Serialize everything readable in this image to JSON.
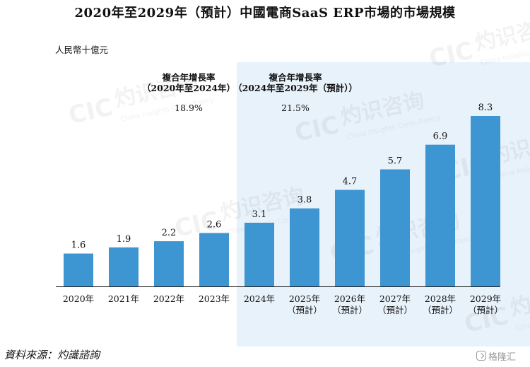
{
  "page": {
    "title": "2020年至2029年（預計）中國電商SaaS ERP市場的市場規模",
    "unit": "人民幣十億元",
    "source": "資料來源：灼識諮詢",
    "logo_text": "格隆汇",
    "watermark_cn": "灼识咨询",
    "watermark_en": "China Insights Consultancy",
    "watermark_abbr": "CIC"
  },
  "chart_data": {
    "type": "bar",
    "title": "2020年至2029年（預計）中國電商SaaS ERP市場的市場規模",
    "ylabel": "人民幣十億元",
    "xlabel": "",
    "ylim": [
      0,
      8.3
    ],
    "categories": [
      [
        "2020年"
      ],
      [
        "2021年"
      ],
      [
        "2022年"
      ],
      [
        "2023年"
      ],
      [
        "2024年"
      ],
      [
        "2025年",
        "（預計）"
      ],
      [
        "2026年",
        "（預計）"
      ],
      [
        "2027年",
        "（預計）"
      ],
      [
        "2028年",
        "（預計）"
      ],
      [
        "2029年",
        "（預計）"
      ]
    ],
    "values": [
      1.6,
      1.9,
      2.2,
      2.6,
      3.1,
      3.8,
      4.7,
      5.7,
      6.9,
      8.3
    ],
    "value_labels": [
      "1.6",
      "1.9",
      "2.2",
      "2.6",
      "3.1",
      "3.8",
      "4.7",
      "5.7",
      "6.9",
      "8.3"
    ],
    "bar_color": "#3d95d1",
    "shade_color": "#e8f2fa",
    "cagr": [
      {
        "line1": "複合年增長率",
        "line2": "（2020年至2024年）",
        "value": "18.9%",
        "from_index": 0,
        "to_index": 3
      },
      {
        "line1": "複合年增長率",
        "line2": "（2024年至2029年（預計））",
        "value": "21.5%",
        "from_index": 4,
        "to_index": 9
      }
    ]
  }
}
